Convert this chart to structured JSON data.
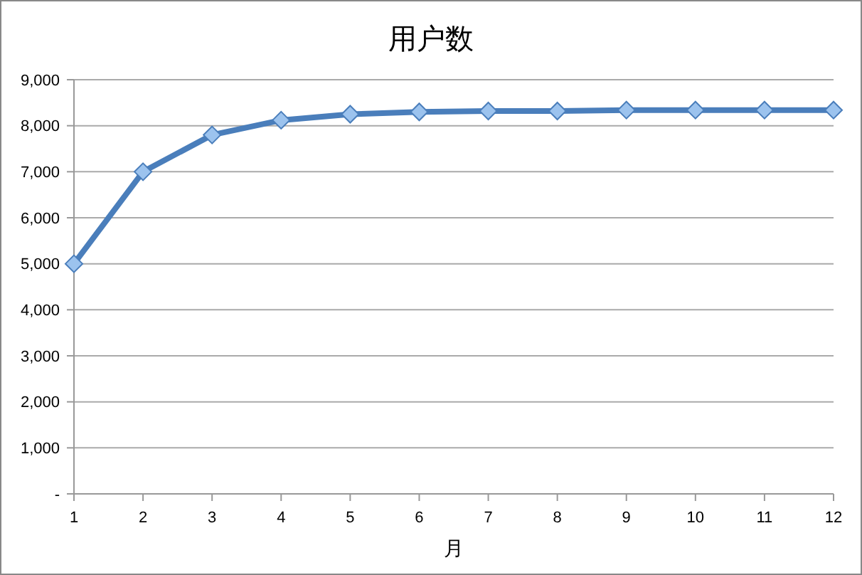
{
  "chart_data": {
    "type": "line",
    "title": "用户数",
    "xlabel": "月",
    "x": [
      1,
      2,
      3,
      4,
      5,
      6,
      7,
      8,
      9,
      10,
      11,
      12
    ],
    "series": [
      {
        "color": "#4a7ebb",
        "values": [
          5000,
          7000,
          7800,
          8120,
          8250,
          8300,
          8320,
          8320,
          8340,
          8340,
          8340,
          8340
        ]
      }
    ],
    "xlim": [
      1,
      12
    ],
    "xticks": [
      1,
      2,
      3,
      4,
      5,
      6,
      7,
      8,
      9,
      10,
      11,
      12
    ],
    "ylim": [
      0,
      9000
    ],
    "yticks": [
      {
        "value": 0,
        "label": "-"
      },
      {
        "value": 1000,
        "label": "1,000"
      },
      {
        "value": 2000,
        "label": "2,000"
      },
      {
        "value": 3000,
        "label": "3,000"
      },
      {
        "value": 4000,
        "label": "4,000"
      },
      {
        "value": 5000,
        "label": "5,000"
      },
      {
        "value": 6000,
        "label": "6,000"
      },
      {
        "value": 7000,
        "label": "7,000"
      },
      {
        "value": 8000,
        "label": "8,000"
      },
      {
        "value": 9000,
        "label": "9,000"
      }
    ],
    "grid": "y",
    "marker": "diamond",
    "line_style": "solid"
  }
}
